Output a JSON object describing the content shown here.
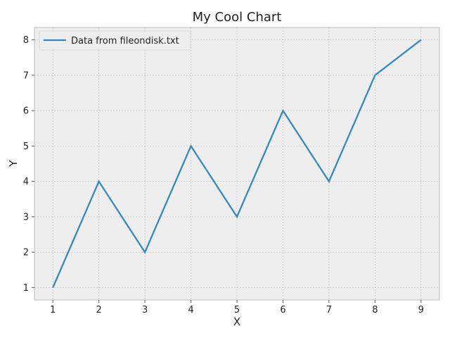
{
  "chart_data": {
    "type": "line",
    "title": "My Cool Chart",
    "xlabel": "X",
    "ylabel": "Y",
    "x": [
      1,
      2,
      3,
      4,
      5,
      6,
      7,
      8,
      9
    ],
    "series": [
      {
        "name": "Data from fileondisk.txt",
        "values": [
          1,
          4,
          2,
          5,
          3,
          6,
          4,
          7,
          8
        ],
        "color": "#348ABD"
      }
    ],
    "x_ticks": [
      1,
      2,
      3,
      4,
      5,
      6,
      7,
      8,
      9
    ],
    "y_ticks": [
      1,
      2,
      3,
      4,
      5,
      6,
      7,
      8
    ],
    "xlim": [
      0.6,
      9.4
    ],
    "ylim": [
      0.65,
      8.35
    ],
    "grid": true,
    "legend_position": "top-left",
    "plot_background": "#EEEEEE",
    "grid_color": "#B2B2B2"
  }
}
